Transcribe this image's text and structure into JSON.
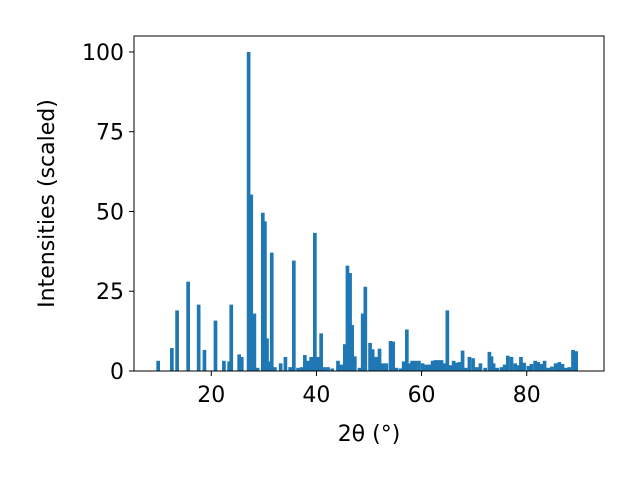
{
  "chart_data": {
    "type": "bar",
    "title": "",
    "xlabel": "2θ (°)",
    "ylabel": "Intensities (scaled)",
    "xlim": [
      5.3,
      94.7
    ],
    "ylim": [
      0,
      105
    ],
    "xticks": [
      20,
      40,
      60,
      80
    ],
    "yticks": [
      0,
      25,
      50,
      75,
      100
    ],
    "grid": false,
    "bar_color": "#1f77b4",
    "bar_width": 0.7,
    "x": [
      9.9,
      12.5,
      13.5,
      15.6,
      17.6,
      18.7,
      20.8,
      22.4,
      23.4,
      23.8,
      25.3,
      25.8,
      27.1,
      27.6,
      28.2,
      28.8,
      29.8,
      30.2,
      30.6,
      31.0,
      31.5,
      32.1,
      33.2,
      34.1,
      35.0,
      35.7,
      36.5,
      37.2,
      37.8,
      38.4,
      39.0,
      39.7,
      40.3,
      40.9,
      41.5,
      42.2,
      43.0,
      44.1,
      44.7,
      45.4,
      45.9,
      46.4,
      46.8,
      47.3,
      48.2,
      48.8,
      49.3,
      50.2,
      50.7,
      51.4,
      52.0,
      52.6,
      53.3,
      54.1,
      54.6,
      55.2,
      56.0,
      56.6,
      57.2,
      57.6,
      58.2,
      58.8,
      59.5,
      60.2,
      60.9,
      61.5,
      62.1,
      62.6,
      63.2,
      63.8,
      64.3,
      64.9,
      65.5,
      66.1,
      66.7,
      67.2,
      67.8,
      68.4,
      69.1,
      69.8,
      70.5,
      71.2,
      72.1,
      72.9,
      73.3,
      73.7,
      74.4,
      75.2,
      75.8,
      76.4,
      77.1,
      77.8,
      78.3,
      78.9,
      79.5,
      80.3,
      80.9,
      81.6,
      82.2,
      82.8,
      83.4,
      84.1,
      84.8,
      85.5,
      86.2,
      86.8,
      87.4,
      88.1,
      88.8,
      89.4
    ],
    "values": [
      3.2,
      7.2,
      19.0,
      28.0,
      20.8,
      6.6,
      15.8,
      3.2,
      3.0,
      20.8,
      5.2,
      4.4,
      100.0,
      55.3,
      18.0,
      1.0,
      49.6,
      46.9,
      10.2,
      3.0,
      37.1,
      1.2,
      2.4,
      4.4,
      1.2,
      34.6,
      1.0,
      1.2,
      5.0,
      3.2,
      4.4,
      43.3,
      4.4,
      11.8,
      1.2,
      1.2,
      0.8,
      3.2,
      2.0,
      8.4,
      33.0,
      30.7,
      14.4,
      4.6,
      1.0,
      18.0,
      26.4,
      8.8,
      6.8,
      4.4,
      7.0,
      2.4,
      2.4,
      9.4,
      9.2,
      1.0,
      0.8,
      3.0,
      13.0,
      2.4,
      3.2,
      3.2,
      3.2,
      2.4,
      2.0,
      2.0,
      3.2,
      3.4,
      3.4,
      3.4,
      2.4,
      19.0,
      1.8,
      3.2,
      2.6,
      2.8,
      6.4,
      1.0,
      4.4,
      4.0,
      1.2,
      2.4,
      1.0,
      6.0,
      4.6,
      2.4,
      1.0,
      1.2,
      2.0,
      4.8,
      4.4,
      2.4,
      1.8,
      4.4,
      2.6,
      1.6,
      2.2,
      3.2,
      2.8,
      2.2,
      3.2,
      1.0,
      1.4,
      2.4,
      2.8,
      2.2,
      1.0,
      1.2,
      6.6,
      6.2
    ]
  }
}
